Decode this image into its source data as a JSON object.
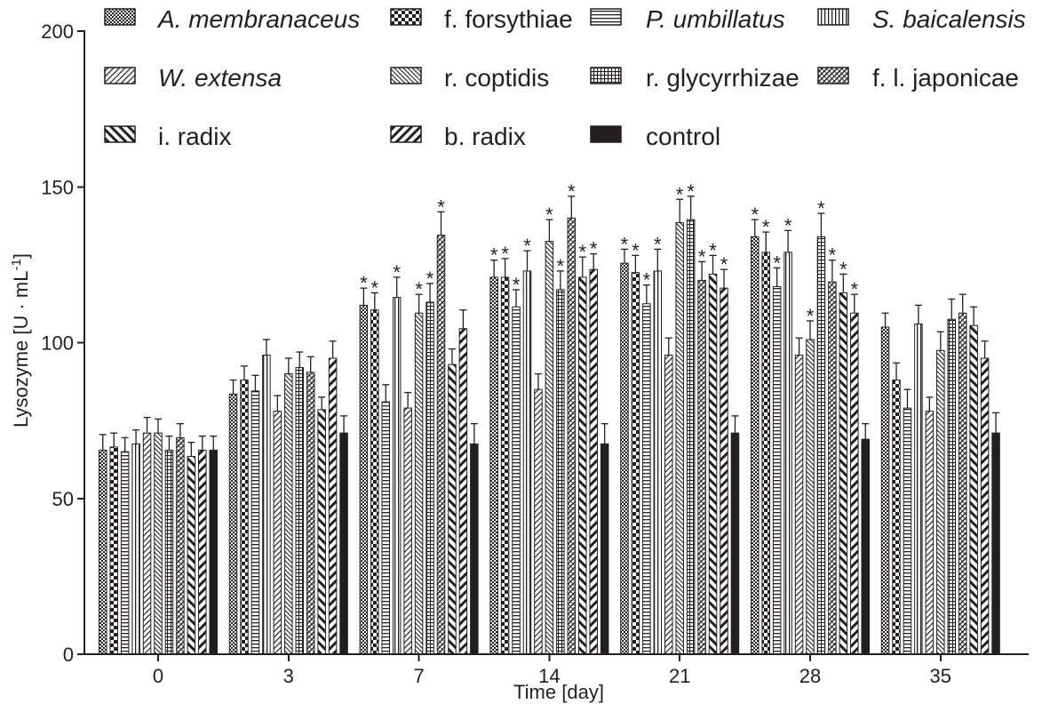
{
  "chart_data": {
    "type": "bar",
    "xlabel": "Time [day]",
    "ylabel": {
      "text": "Lysozyme [U · mL",
      "superscript": "-1",
      "suffix": "]"
    },
    "ylim": [
      0,
      200
    ],
    "yticks": [
      0,
      50,
      100,
      150,
      200
    ],
    "categories": [
      "0",
      "3",
      "7",
      "14",
      "21",
      "28",
      "35"
    ],
    "grid": false,
    "legend_position": "top",
    "significance_marker": "*",
    "colors": {
      "ink": "#231f20",
      "background": "#ffffff"
    },
    "series": [
      {
        "name": "A. membranaceus",
        "italic": true,
        "pattern": "checker-fine",
        "values": [
          65.5,
          83.5,
          112,
          121,
          125.5,
          134,
          105
        ],
        "errors": [
          5,
          4.5,
          5.5,
          5.5,
          4.5,
          5.5,
          4.5
        ],
        "significant": [
          false,
          false,
          true,
          true,
          true,
          true,
          false
        ]
      },
      {
        "name": "f. forsythiae",
        "italic": false,
        "pattern": "checker-coarse",
        "values": [
          66.5,
          88,
          110.5,
          121,
          122.5,
          129,
          88
        ],
        "errors": [
          4.5,
          4.5,
          5.5,
          6,
          5.5,
          6.5,
          5.5
        ],
        "significant": [
          false,
          false,
          true,
          true,
          true,
          true,
          false
        ]
      },
      {
        "name": "P. umbillatus",
        "italic": true,
        "pattern": "horizontal-lines",
        "values": [
          65,
          84.5,
          81,
          111.5,
          112.5,
          118,
          79
        ],
        "errors": [
          4.5,
          5,
          5.5,
          5.5,
          6,
          6,
          6
        ],
        "significant": [
          false,
          false,
          false,
          true,
          true,
          true,
          false
        ]
      },
      {
        "name": "S. baicalensis",
        "italic": true,
        "pattern": "vertical-lines",
        "values": [
          67.5,
          96,
          114.5,
          123,
          123,
          129,
          106
        ],
        "errors": [
          4.5,
          5,
          6.5,
          6.5,
          7,
          7,
          6
        ],
        "significant": [
          false,
          false,
          true,
          true,
          true,
          true,
          false
        ]
      },
      {
        "name": "W. extensa",
        "italic": true,
        "pattern": "diagonal-fwd-thin",
        "values": [
          71,
          78,
          79,
          85,
          96,
          96,
          78
        ],
        "errors": [
          5,
          5,
          5,
          5,
          5.5,
          5.5,
          4.5
        ],
        "significant": [
          false,
          false,
          false,
          false,
          false,
          false,
          false
        ]
      },
      {
        "name": "r. coptidis",
        "italic": false,
        "pattern": "diagonal-back-thin",
        "values": [
          71,
          90,
          109.5,
          132.5,
          138.5,
          101,
          97.5
        ],
        "errors": [
          4.5,
          5,
          6,
          7,
          7.5,
          6,
          6
        ],
        "significant": [
          false,
          false,
          true,
          true,
          true,
          true,
          false
        ]
      },
      {
        "name": "r. glycyrrhizae",
        "italic": false,
        "pattern": "grid",
        "values": [
          65.5,
          92,
          113,
          117,
          139.5,
          134,
          107.5
        ],
        "errors": [
          4.5,
          5,
          6,
          6,
          7.5,
          7.5,
          6.5
        ],
        "significant": [
          false,
          false,
          true,
          true,
          true,
          true,
          false
        ]
      },
      {
        "name": "f. l. japonicae",
        "italic": false,
        "pattern": "crosshatch-dense",
        "values": [
          69.5,
          90.5,
          134.5,
          140,
          120,
          119.5,
          109.5
        ],
        "errors": [
          4.5,
          5,
          7.5,
          7,
          6,
          7,
          6
        ],
        "significant": [
          false,
          false,
          true,
          true,
          true,
          true,
          false
        ]
      },
      {
        "name": "i. radix",
        "italic": false,
        "pattern": "diagonal-back-thick",
        "values": [
          63.5,
          78.5,
          93,
          121,
          122,
          116,
          105.5
        ],
        "errors": [
          4.5,
          4,
          5,
          6.5,
          6,
          6,
          6
        ],
        "significant": [
          false,
          false,
          false,
          true,
          true,
          true,
          false
        ]
      },
      {
        "name": "b. radix",
        "italic": false,
        "pattern": "diagonal-fwd-thick",
        "values": [
          65.5,
          95,
          104.5,
          123.5,
          117.5,
          109.5,
          95
        ],
        "errors": [
          4.5,
          5.5,
          6,
          5,
          6,
          6,
          5.5
        ],
        "significant": [
          false,
          false,
          false,
          true,
          true,
          true,
          false
        ]
      },
      {
        "name": "control",
        "italic": false,
        "pattern": "solid",
        "color": "#231f20",
        "values": [
          65.5,
          71,
          67.5,
          67.5,
          71,
          69,
          71
        ],
        "errors": [
          4.5,
          5.5,
          6.5,
          6.5,
          5.5,
          5,
          6.5
        ],
        "significant": [
          false,
          false,
          false,
          false,
          false,
          false,
          false
        ]
      }
    ]
  }
}
